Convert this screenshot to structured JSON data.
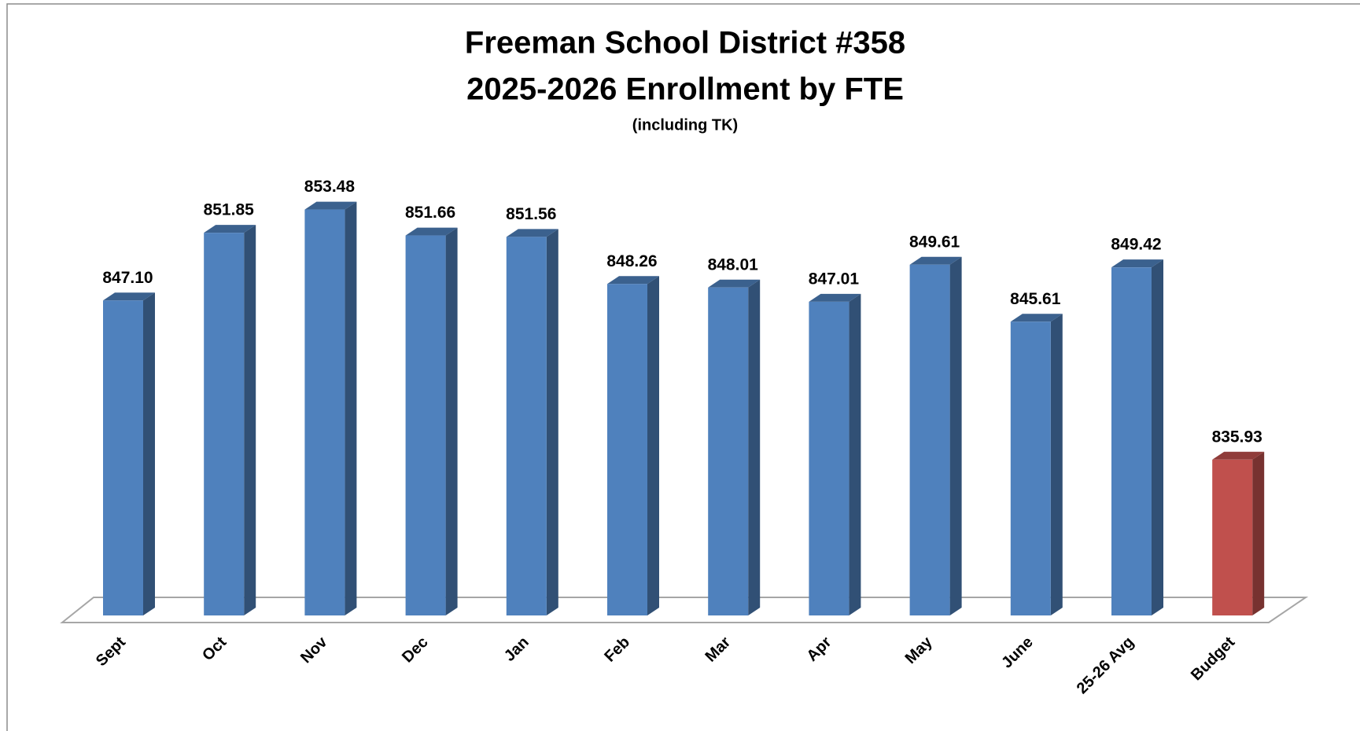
{
  "chart_data": {
    "type": "bar3d",
    "title": "Freeman School District #358",
    "subtitle": "2025-2026 Enrollment by FTE",
    "note": "(including TK)",
    "categories": [
      "Sept",
      "Oct",
      "Nov",
      "Dec",
      "Jan",
      "Feb",
      "Mar",
      "Apr",
      "May",
      "June",
      "25-26 Avg",
      "Budget"
    ],
    "values": [
      847.1,
      851.85,
      853.48,
      851.66,
      851.56,
      848.26,
      848.01,
      847.01,
      849.61,
      845.61,
      849.42,
      835.93
    ],
    "value_labels": [
      "847.10",
      "851.85",
      "853.48",
      "851.66",
      "851.56",
      "848.26",
      "848.01",
      "847.01",
      "849.61",
      "845.61",
      "849.42",
      "835.93"
    ],
    "colors": [
      "#4f81bd",
      "#4f81bd",
      "#4f81bd",
      "#4f81bd",
      "#4f81bd",
      "#4f81bd",
      "#4f81bd",
      "#4f81bd",
      "#4f81bd",
      "#4f81bd",
      "#4f81bd",
      "#c0504d"
    ],
    "ylim": [
      825,
      855
    ]
  }
}
